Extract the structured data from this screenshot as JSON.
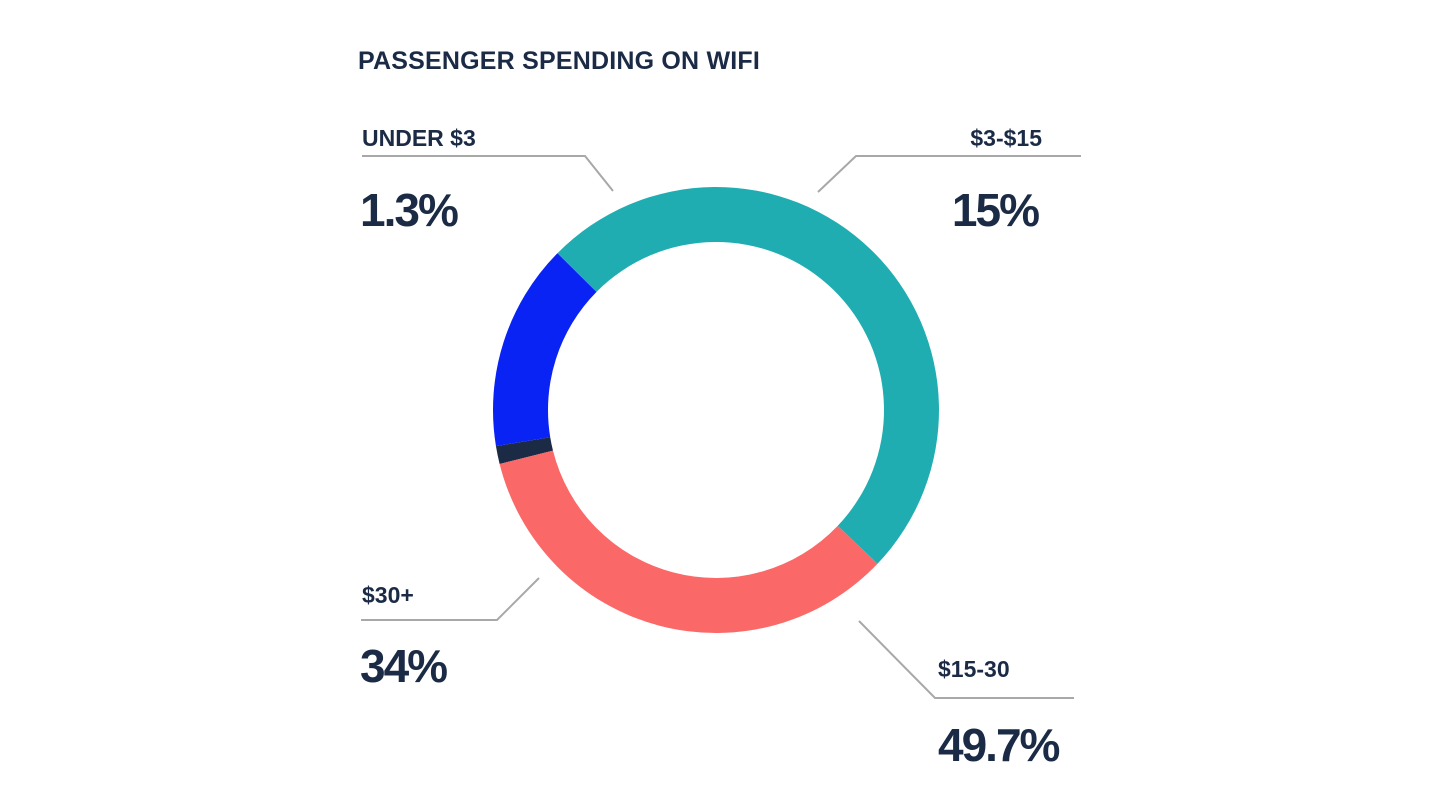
{
  "chart_data": {
    "type": "pie",
    "title": "PASSENGER SPENDING ON WIFI",
    "slices": [
      {
        "label": "UNDER $3",
        "value": 1.3,
        "display": "1.3%",
        "color": "#1b2a45"
      },
      {
        "label": "$3-$15",
        "value": 15,
        "display": "15%",
        "color": "#0a23f5"
      },
      {
        "label": "$15-30",
        "value": 49.7,
        "display": "49.7%",
        "color": "#20adb2"
      },
      {
        "label": "$30+",
        "value": 34,
        "display": "34%",
        "color": "#fb6868"
      }
    ],
    "donut": true,
    "legend": "none"
  }
}
